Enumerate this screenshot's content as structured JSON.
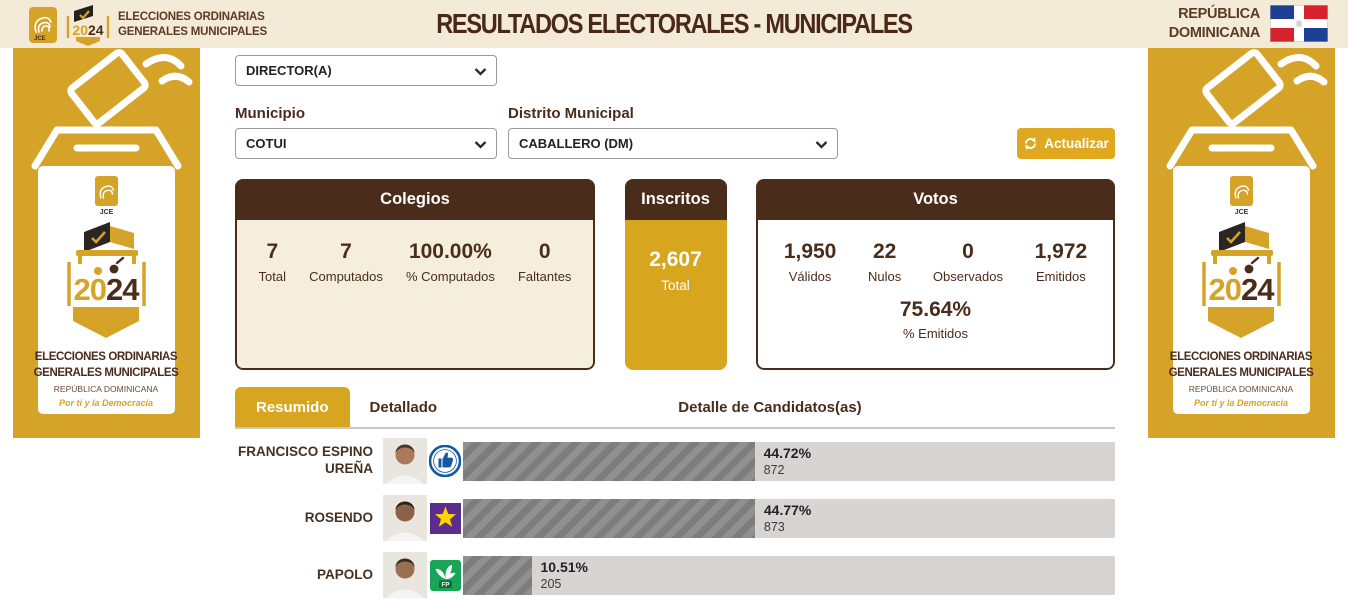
{
  "header": {
    "logo": {
      "line1": "ELECCIONES ORDINARIAS",
      "line2": "GENERALES MUNICIPALES",
      "year_prefix": "20",
      "year_suffix": "24",
      "jce": "JCE"
    },
    "title": "RESULTADOS ELECTORALES - MUNICIPALES",
    "country_line1": "REPÚBLICA",
    "country_line2": "DOMINICANA"
  },
  "sidebar": {
    "year_prefix": "20",
    "year_suffix": "24",
    "jce": "JCE",
    "line1": "ELECCIONES ORDINARIAS",
    "line2": "GENERALES MUNICIPALES",
    "line3": "REPÚBLICA DOMINICANA",
    "tagline": "Por ti y la Democracia"
  },
  "filters": {
    "position_value": "DIRECTOR(A)",
    "municipio_label": "Municipio",
    "municipio_value": "COTUI",
    "distrito_label": "Distrito Municipal",
    "distrito_value": "CABALLERO (DM)",
    "refresh_label": "Actualizar"
  },
  "cards": {
    "colegios": {
      "title": "Colegios",
      "stats": [
        {
          "value": "7",
          "label": "Total"
        },
        {
          "value": "7",
          "label": "Computados"
        },
        {
          "value": "100.00%",
          "label": "% Computados"
        },
        {
          "value": "0",
          "label": "Faltantes"
        }
      ]
    },
    "inscritos": {
      "title": "Inscritos",
      "value": "2,607",
      "label": "Total"
    },
    "votos": {
      "title": "Votos",
      "stats": [
        {
          "value": "1,950",
          "label": "Válidos"
        },
        {
          "value": "22",
          "label": "Nulos"
        },
        {
          "value": "0",
          "label": "Observados"
        },
        {
          "value": "1,972",
          "label": "Emitidos"
        }
      ],
      "percent_value": "75.64%",
      "percent_label": "% Emitidos"
    }
  },
  "tabs": {
    "resumido": "Resumido",
    "detallado": "Detallado",
    "section_title": "Detalle de Candidatos(as)"
  },
  "candidates": [
    {
      "name": "FRANCISCO ESPINO UREÑA",
      "party_icon": "thumbs-up-blue-circle",
      "percent": "44.72%",
      "votes": "872",
      "percent_value": 44.72
    },
    {
      "name": "ROSENDO",
      "party_icon": "yellow-star-purple-square",
      "percent": "44.77%",
      "votes": "873",
      "percent_value": 44.77
    },
    {
      "name": "PAPOLO",
      "party_icon": "fp-green-square",
      "fp_label": "FP",
      "percent": "10.51%",
      "votes": "205",
      "percent_value": 10.51
    }
  ],
  "icons": {
    "refresh": "circular-arrows",
    "chevron_down": "v-chevron",
    "fingerprint": "jce-fingerprint",
    "flag": "dominican-republic-flag",
    "thumbs_up": "thumbs-up",
    "star": "five-point-star",
    "fp_plant": "palm-plant"
  },
  "colors": {
    "gold": "#D5A328",
    "gold_bright": "#DFA81E",
    "dark_brown": "#4A2C1B",
    "text_brown": "#5C3B24",
    "header_cream": "#F3EBD7",
    "card_cream": "#F6EEDC",
    "bar_track": "#D7D4D1",
    "bar_fill": "#8A8A8A",
    "party_blue": "#1558A0",
    "party_purple": "#5B2D8E",
    "star_yellow": "#FFD500",
    "party_green": "#18A558"
  }
}
